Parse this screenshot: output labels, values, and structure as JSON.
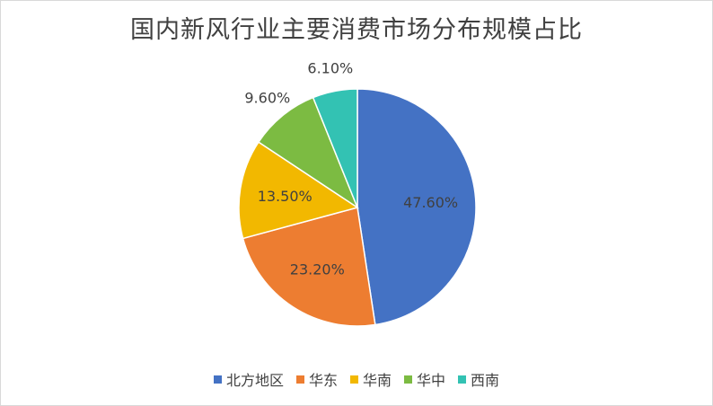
{
  "chart_data": {
    "type": "pie",
    "title": "国内新风行业主要消费市场分布规模占比",
    "categories": [
      "北方地区",
      "华东",
      "华南",
      "华中",
      "西南"
    ],
    "values": [
      47.6,
      23.2,
      13.5,
      9.6,
      6.1
    ],
    "labels": [
      "47.60%",
      "23.20%",
      "13.50%",
      "9.60%",
      "6.10%"
    ],
    "colors": [
      "#4472C4",
      "#ED7D31",
      "#F2B800",
      "#7CBB42",
      "#33C2B3"
    ],
    "start_angle": "12 o'clock, clockwise",
    "legend_position": "bottom"
  }
}
